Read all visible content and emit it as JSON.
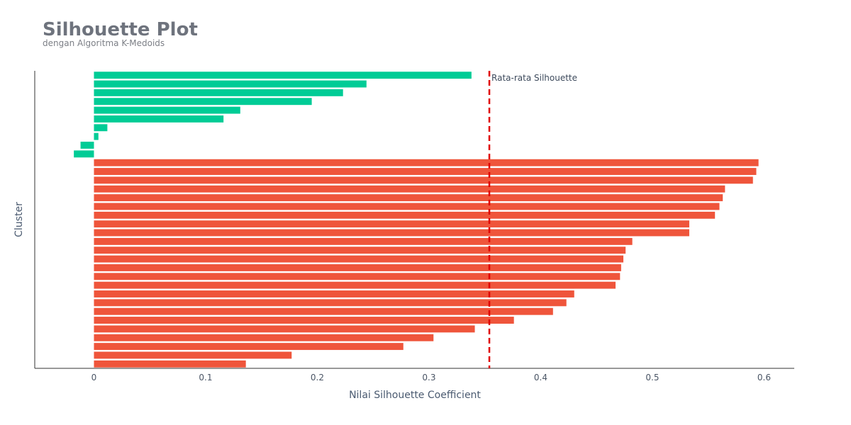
{
  "chart_data": {
    "type": "bar",
    "orientation": "horizontal",
    "title": "Silhouette Plot",
    "subtitle": "dengan Algoritma K-Medoids",
    "xlabel": "Nilai Silhouette Coefficient",
    "ylabel": "Cluster",
    "xlim": [
      -0.053,
      0.627
    ],
    "xticks": [
      0,
      0.1,
      0.2,
      0.3,
      0.4,
      0.5,
      0.6
    ],
    "xtick_labels": [
      "0",
      "0.1",
      "0.2",
      "0.3",
      "0.4",
      "0.5",
      "0.6"
    ],
    "grid": false,
    "series": [
      {
        "color": "#00cc96",
        "values": [
          0.338,
          0.244,
          0.223,
          0.195,
          0.131,
          0.116,
          0.012,
          0.004,
          -0.012,
          -0.018
        ]
      },
      {
        "color": "#ef553b",
        "values": [
          0.595,
          0.593,
          0.59,
          0.565,
          0.563,
          0.56,
          0.556,
          0.533,
          0.533,
          0.482,
          0.476,
          0.474,
          0.472,
          0.471,
          0.467,
          0.43,
          0.423,
          0.411,
          0.376,
          0.341,
          0.304,
          0.277,
          0.177,
          0.136
        ]
      }
    ],
    "reference_line": {
      "x": 0.354,
      "label": "Rata-rata Silhouette",
      "color": "#e00000",
      "style": "dashed"
    }
  }
}
